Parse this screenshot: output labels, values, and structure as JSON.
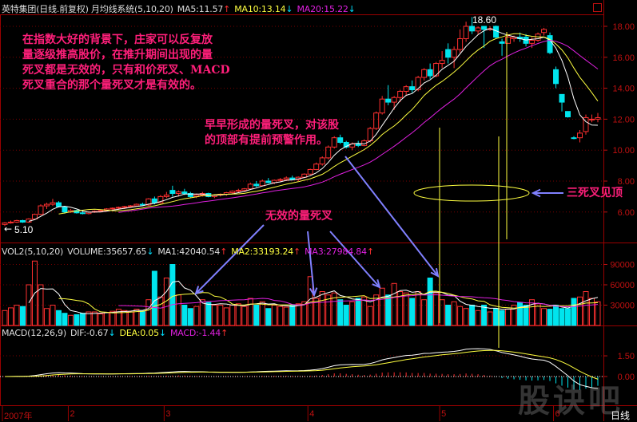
{
  "header": {
    "title": "英特集团(日线.前复权) 月均线系统(5,10,20)",
    "ma5": "MA5:11.57",
    "ma5_dir": "↑",
    "ma10": "MA10:13.14",
    "ma10_dir": "↓",
    "ma20": "MA20:15.22",
    "ma20_dir": "↓"
  },
  "volume_header": {
    "title": "VOL2(5,10,20)",
    "volume": "VOLUME:35657.65",
    "volume_dir": "↓",
    "ma1": "MA1:42040.54",
    "ma1_dir": "↑",
    "ma2": "MA2:33193.24",
    "ma2_dir": "↑",
    "ma3": "MA3:27984.84",
    "ma3_dir": "↑"
  },
  "macd_header": {
    "title": "MACD(12,26,9)",
    "dif": "DIF:-0.67",
    "dif_dir": "↓",
    "dea": "DEA:0.05",
    "dea_dir": "↓",
    "macd": "MACD:-1.44",
    "macd_dir": "↑"
  },
  "annotations": {
    "main_note": [
      "在指数大好的背景下，庄家可以反复放",
      "量逐级推高股价，在推升期间出现的量",
      "死叉都是无效的，只有和价死叉、MACD",
      "死叉重合的那个量死叉才是有效的。"
    ],
    "early_note": [
      "早早形成的量死叉，对该股",
      "的顶部有提前预警作用。"
    ],
    "invalid_note": "无效的量死叉",
    "top_note": "三死叉见顶",
    "high_label": "18.60",
    "low_label": "5.10"
  },
  "bottom_axis": {
    "months": [
      "2007年",
      "2",
      "3",
      "4",
      "5",
      "6"
    ],
    "period": "日线"
  },
  "watermark": "股诀吧",
  "colors": {
    "up": "#ff3030",
    "down": "#00e5ee",
    "ma1": "#ffffff",
    "ma2": "#ffff40",
    "ma3": "#e020e0",
    "axis": "#c01010",
    "annotation": "#ff1f7a",
    "arrow": "#8080ff"
  },
  "chart_data": [
    {
      "type": "candlestick",
      "title": "英特集团(日线.前复权)",
      "ylim": [
        5,
        19
      ],
      "yticks": [
        "6.00",
        "8.00",
        "10.00",
        "12.00",
        "14.00",
        "16.00",
        "18.00"
      ],
      "month_starts": [
        0,
        11,
        27,
        51,
        73,
        92
      ],
      "ohlc": [
        [
          5.2,
          5.35,
          5.1,
          5.3
        ],
        [
          5.3,
          5.45,
          5.25,
          5.35
        ],
        [
          5.35,
          5.5,
          5.3,
          5.45
        ],
        [
          5.45,
          5.5,
          5.3,
          5.35
        ],
        [
          5.35,
          5.6,
          5.3,
          5.55
        ],
        [
          5.55,
          5.9,
          5.5,
          5.85
        ],
        [
          5.85,
          6.5,
          5.8,
          6.4
        ],
        [
          6.4,
          6.6,
          6.2,
          6.5
        ],
        [
          6.5,
          6.85,
          6.4,
          6.6
        ],
        [
          6.6,
          6.7,
          6.3,
          6.35
        ],
        [
          6.35,
          6.4,
          5.9,
          6.0
        ],
        [
          6.0,
          6.2,
          5.95,
          6.1
        ],
        [
          6.1,
          6.15,
          5.9,
          5.95
        ],
        [
          5.95,
          6.1,
          5.85,
          5.9
        ],
        [
          5.9,
          6.05,
          5.85,
          6.0
        ],
        [
          6.0,
          6.1,
          5.95,
          6.05
        ],
        [
          6.05,
          6.15,
          6.0,
          6.1
        ],
        [
          6.1,
          6.25,
          6.05,
          6.2
        ],
        [
          6.2,
          6.3,
          6.1,
          6.25
        ],
        [
          6.25,
          6.35,
          6.15,
          6.3
        ],
        [
          6.3,
          6.4,
          6.2,
          6.35
        ],
        [
          6.35,
          6.45,
          6.3,
          6.4
        ],
        [
          6.4,
          6.55,
          6.35,
          6.5
        ],
        [
          6.5,
          6.6,
          6.4,
          6.45
        ],
        [
          6.45,
          6.9,
          6.4,
          6.85
        ],
        [
          6.85,
          7.0,
          6.5,
          6.6
        ],
        [
          6.6,
          7.1,
          6.55,
          7.0
        ],
        [
          7.0,
          7.3,
          6.9,
          7.1
        ],
        [
          7.4,
          7.7,
          7.0,
          7.2
        ],
        [
          7.2,
          7.4,
          7.0,
          7.3
        ],
        [
          7.3,
          7.5,
          7.1,
          7.2
        ],
        [
          7.2,
          7.3,
          6.9,
          7.0
        ],
        [
          7.0,
          7.2,
          6.9,
          7.1
        ],
        [
          7.1,
          7.3,
          7.0,
          7.2
        ],
        [
          7.2,
          7.25,
          6.95,
          7.0
        ],
        [
          7.0,
          7.15,
          6.9,
          7.1
        ],
        [
          7.1,
          7.2,
          7.0,
          7.15
        ],
        [
          7.15,
          7.3,
          7.05,
          7.25
        ],
        [
          7.25,
          7.4,
          7.15,
          7.35
        ],
        [
          7.35,
          7.5,
          7.25,
          7.4
        ],
        [
          7.4,
          7.55,
          7.3,
          7.5
        ],
        [
          7.5,
          7.9,
          7.45,
          7.8
        ],
        [
          7.8,
          8.0,
          7.6,
          7.7
        ],
        [
          7.7,
          8.1,
          7.65,
          8.0
        ],
        [
          8.0,
          8.2,
          7.85,
          7.9
        ],
        [
          7.9,
          8.1,
          7.8,
          8.05
        ],
        [
          8.05,
          8.2,
          7.95,
          8.1
        ],
        [
          8.1,
          8.3,
          8.0,
          8.2
        ],
        [
          8.2,
          8.35,
          8.05,
          8.1
        ],
        [
          8.1,
          8.3,
          8.0,
          8.25
        ],
        [
          8.25,
          8.5,
          8.2,
          8.45
        ],
        [
          8.45,
          8.8,
          8.4,
          8.75
        ],
        [
          8.75,
          9.2,
          8.7,
          9.1
        ],
        [
          9.1,
          9.6,
          9.0,
          9.5
        ],
        [
          9.5,
          10.3,
          9.4,
          10.2
        ],
        [
          10.2,
          10.9,
          10.1,
          10.8
        ],
        [
          10.8,
          11.0,
          10.4,
          10.5
        ],
        [
          10.5,
          10.6,
          10.1,
          10.2
        ],
        [
          10.2,
          10.5,
          10.0,
          10.4
        ],
        [
          10.4,
          10.6,
          10.2,
          10.3
        ],
        [
          10.3,
          10.7,
          10.25,
          10.6
        ],
        [
          10.6,
          11.5,
          10.5,
          11.4
        ],
        [
          11.4,
          12.5,
          11.3,
          12.4
        ],
        [
          12.4,
          13.5,
          12.3,
          13.3
        ],
        [
          13.3,
          14.2,
          12.9,
          13.1
        ],
        [
          13.1,
          13.5,
          12.6,
          13.4
        ],
        [
          13.4,
          13.9,
          13.1,
          13.8
        ],
        [
          13.8,
          14.2,
          13.5,
          14.1
        ],
        [
          14.1,
          14.5,
          13.7,
          13.9
        ],
        [
          13.9,
          14.8,
          13.8,
          14.7
        ],
        [
          14.7,
          15.3,
          14.5,
          15.2
        ],
        [
          15.2,
          15.6,
          14.6,
          14.8
        ],
        [
          14.8,
          15.7,
          14.7,
          15.6
        ],
        [
          15.6,
          16.4,
          15.3,
          15.8
        ],
        [
          16.5,
          16.9,
          15.6,
          16.0
        ],
        [
          16.0,
          16.7,
          15.3,
          16.5
        ],
        [
          16.5,
          17.8,
          16.3,
          17.2
        ],
        [
          17.2,
          18.3,
          17.0,
          18.0
        ],
        [
          18.0,
          18.6,
          17.5,
          17.7
        ],
        [
          17.7,
          18.0,
          17.5,
          17.9
        ],
        [
          18.0,
          18.0,
          16.6,
          17.8
        ],
        [
          17.8,
          18.0,
          17.7,
          17.85
        ],
        [
          18.0,
          18.05,
          17.2,
          17.3
        ],
        [
          17.0,
          17.2,
          16.1,
          16.9
        ],
        [
          16.9,
          17.5,
          16.9,
          17.3
        ],
        [
          17.2,
          17.4,
          17.0,
          17.3
        ],
        [
          17.3,
          17.6,
          17.0,
          17.2
        ],
        [
          17.3,
          17.5,
          16.7,
          16.9
        ],
        [
          16.9,
          17.3,
          16.6,
          17.1
        ],
        [
          17.1,
          17.6,
          17.0,
          17.5
        ],
        [
          17.6,
          17.9,
          17.4,
          17.8
        ],
        [
          17.4,
          17.6,
          16.2,
          16.3
        ],
        [
          15.2,
          15.4,
          14.0,
          14.3
        ],
        [
          13.6,
          13.6,
          12.5,
          13.1
        ],
        [
          12.5,
          12.5,
          12.1,
          12.15
        ],
        [
          10.8,
          10.9,
          10.7,
          10.75
        ],
        [
          10.8,
          11.3,
          10.5,
          11.1
        ],
        [
          11.2,
          12.3,
          11.0,
          12.1
        ],
        [
          12.0,
          12.3,
          11.8,
          12.0
        ],
        [
          12.0,
          12.4,
          11.8,
          12.1
        ]
      ],
      "ma_periods": [
        5,
        10,
        20
      ]
    },
    {
      "type": "bar",
      "title": "VOL2(5,10,20)",
      "ylim": [
        0,
        105000
      ],
      "yticks": [
        "30000",
        "60000",
        "90000"
      ],
      "values": [
        22000,
        26000,
        30000,
        28000,
        60000,
        95000,
        60000,
        25000,
        30000,
        22000,
        18000,
        15000,
        16000,
        18000,
        20000,
        20000,
        17000,
        19000,
        21000,
        24000,
        22000,
        20000,
        24000,
        21000,
        38000,
        80000,
        42000,
        70000,
        90000,
        45000,
        30000,
        25000,
        28000,
        38000,
        34000,
        30000,
        30000,
        26000,
        30000,
        32000,
        28000,
        40000,
        30000,
        35000,
        25000,
        30000,
        28000,
        27000,
        30000,
        32000,
        35000,
        72000,
        40000,
        50000,
        45000,
        48000,
        38000,
        30000,
        35000,
        40000,
        42000,
        28000,
        45000,
        55000,
        45000,
        62000,
        50000,
        48000,
        40000,
        50000,
        38000,
        70000,
        48000,
        38000,
        30000,
        35000,
        28000,
        25000,
        30000,
        22000,
        30000,
        20000,
        25000,
        22000,
        24000,
        30000,
        34000,
        30000,
        38000,
        32000,
        25000,
        24000,
        30000,
        25000,
        25000,
        40000,
        42000,
        50000,
        40000,
        35000
      ],
      "ma_periods": [
        5,
        10,
        20
      ]
    },
    {
      "type": "line",
      "title": "MACD(12,26,9)",
      "yticks": [
        "0.00",
        "1.50"
      ],
      "params": [
        12,
        26,
        9
      ]
    }
  ]
}
